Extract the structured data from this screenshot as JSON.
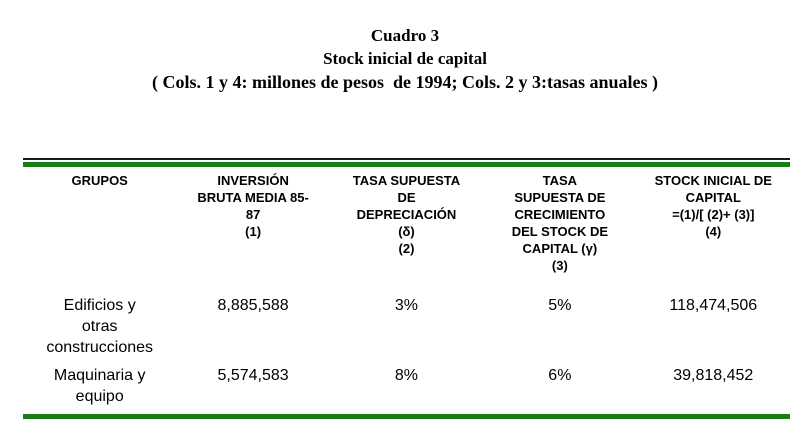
{
  "caption": {
    "number": "Cuadro 3",
    "title": "Stock inicial de capital",
    "units_note": "( Cols. 1 y 4: millones de pesos  de 1994; Cols. 2 y 3:tasas anuales )"
  },
  "table": {
    "columns": [
      "GRUPOS",
      "INVERSIÓN\nBRUTA MEDIA 85-\n87\n(1)",
      "TASA SUPUESTA\nDE\nDEPRECIACIÓN\n(δ)\n(2)",
      "TASA\nSUPUESTA DE\nCRECIMIENTO\nDEL STOCK DE\nCAPITAL (γ)\n(3)",
      "STOCK INICIAL DE\nCAPITAL\n=(1)/[ (2)+ (3)]\n(4)"
    ],
    "rows": [
      {
        "cells": [
          "Edificios y\notras\nconstrucciones",
          "8,885,588",
          "3%",
          "5%",
          "118,474,506"
        ]
      },
      {
        "cells": [
          "Maquinaria y\nequipo",
          "5,574,583",
          "8%",
          "6%",
          "39,818,452"
        ]
      }
    ]
  },
  "colors": {
    "rule_green": "#158015",
    "rule_dark": "#1a1a1a",
    "text": "#000000",
    "background": "#ffffff"
  }
}
